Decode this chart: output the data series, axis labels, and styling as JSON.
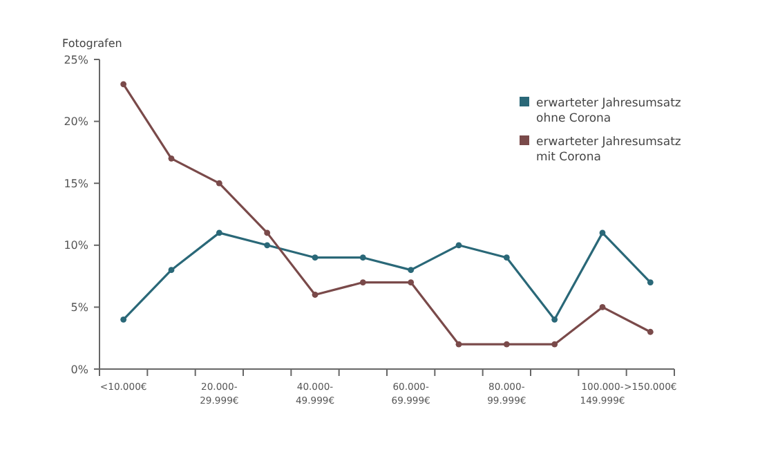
{
  "chart_data": {
    "type": "line",
    "ylabel": "Fotografen",
    "categories": [
      "<10.000€",
      null,
      "20.000-\n29.999€",
      null,
      "40.000-\n49.999€",
      null,
      "60.000-\n69.999€",
      null,
      "80.000-\n99.999€",
      null,
      "100.000-\n149.999€",
      ">150.000€"
    ],
    "series": [
      {
        "name": "erwarteter Jahresumsatz\nohne Corona",
        "color": "#2a6878",
        "values": [
          4,
          8,
          11,
          10,
          9,
          9,
          8,
          10,
          9,
          4,
          11,
          7
        ]
      },
      {
        "name": "erwarteter Jahresumsatz\nmit Corona",
        "color": "#7a4a4a",
        "values": [
          23,
          17,
          15,
          11,
          6,
          7,
          7,
          2,
          2,
          2,
          5,
          3
        ]
      }
    ],
    "ylim": [
      0,
      25
    ],
    "yticks": [
      {
        "value": 0,
        "label": "0%"
      },
      {
        "value": 5,
        "label": "5%"
      },
      {
        "value": 10,
        "label": "10%"
      },
      {
        "value": 15,
        "label": "15%"
      },
      {
        "value": 20,
        "label": "20%"
      },
      {
        "value": 25,
        "label": "25%"
      }
    ],
    "marker": "circle",
    "line_style": "solid",
    "grid": false,
    "legend": "top right"
  }
}
